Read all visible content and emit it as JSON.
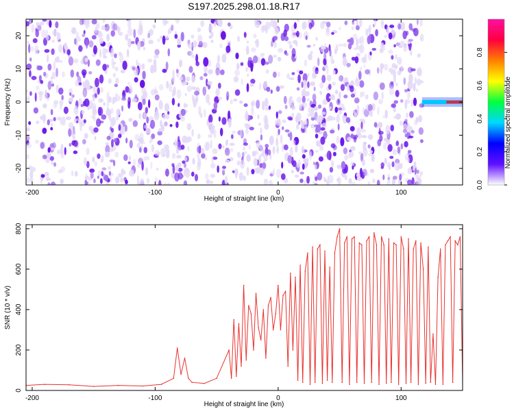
{
  "title": "S197.2025.298.01.18.R17",
  "colors": {
    "snr_line": "#e8302c",
    "spectrogram_light": "#e4d9f7",
    "spectrogram_mid": "#a070ec",
    "spectrogram_dark": "#6a16e8",
    "colorbar": [
      "#ffffff",
      "#6010ff",
      "#0000ff",
      "#00d8ff",
      "#00ff40",
      "#ffff00",
      "#ff8000",
      "#ff0040",
      "#ff10a0"
    ]
  },
  "chart_data": [
    {
      "type": "heatmap",
      "title": "S197.2025.298.01.18.R17",
      "xlabel": "Height of straight line (km)",
      "ylabel": "Frequency (Hz)",
      "xlim": [
        -205,
        150
      ],
      "ylim": [
        -25,
        25
      ],
      "xticks": [
        -200,
        -100,
        0,
        100
      ],
      "yticks": [
        -20,
        -10,
        0,
        10,
        20
      ],
      "colorbar": {
        "label": "Normalized spectral amplitude",
        "range": [
          0,
          1
        ],
        "ticks": [
          "0.0",
          "0.2",
          "0.4",
          "0.6",
          "0.8"
        ]
      },
      "blank_x_range": [
        117,
        150
      ],
      "strong_signal": {
        "x_range": [
          117,
          150
        ],
        "frequency": 0,
        "peak_amplitude": 0.95
      }
    },
    {
      "type": "line",
      "xlabel": "Height of straight line (km)",
      "ylabel": "SNR (10 * v/v)",
      "xlim": [
        -205,
        150
      ],
      "ylim": [
        0,
        820
      ],
      "xticks": [
        -200,
        -100,
        0,
        100
      ],
      "yticks": [
        0,
        200,
        400,
        600,
        800
      ],
      "series": [
        {
          "x": [
            -205,
            -190,
            -170,
            -150,
            -130,
            -110,
            -95,
            -85,
            -82,
            -79,
            -76,
            -73,
            -70,
            -60,
            -50,
            -40,
            -38,
            -36,
            -34,
            -32,
            -30,
            -28,
            -26,
            -24,
            -22,
            -20,
            -18,
            -16,
            -14,
            -12,
            -10,
            -8,
            -6,
            -4,
            -2,
            0,
            2,
            4,
            6,
            8,
            10,
            12,
            14,
            16,
            18,
            20,
            22,
            24,
            26,
            28,
            30,
            32,
            34,
            36,
            38,
            40,
            42,
            44,
            46,
            48,
            50,
            52,
            54,
            56,
            58,
            60,
            62,
            64,
            66,
            68,
            70,
            72,
            74,
            76,
            78,
            80,
            82,
            84,
            86,
            88,
            90,
            92,
            94,
            96,
            98,
            100,
            102,
            104,
            106,
            108,
            110,
            112,
            114,
            116,
            118,
            120,
            122,
            124,
            126,
            128,
            130,
            132,
            134,
            136,
            138,
            140,
            142,
            144,
            146,
            148,
            150
          ],
          "values": [
            25,
            30,
            28,
            20,
            25,
            22,
            30,
            60,
            210,
            80,
            160,
            60,
            40,
            35,
            60,
            200,
            60,
            350,
            70,
            330,
            120,
            520,
            150,
            420,
            380,
            200,
            480,
            310,
            250,
            400,
            160,
            420,
            460,
            300,
            380,
            520,
            300,
            470,
            490,
            120,
            580,
            200,
            560,
            50,
            620,
            40,
            590,
            680,
            30,
            710,
            40,
            700,
            720,
            35,
            690,
            50,
            610,
            40,
            680,
            760,
            800,
            40,
            730,
            760,
            30,
            750,
            760,
            40,
            730,
            720,
            35,
            740,
            760,
            40,
            780,
            720,
            30,
            760,
            720,
            35,
            750,
            40,
            730,
            720,
            30,
            760,
            700,
            35,
            750,
            40,
            700,
            740,
            30,
            730,
            600,
            35,
            710,
            40,
            280,
            30,
            560,
            700,
            30,
            720,
            740,
            760,
            40,
            740,
            720,
            760,
            40
          ]
        }
      ]
    }
  ]
}
